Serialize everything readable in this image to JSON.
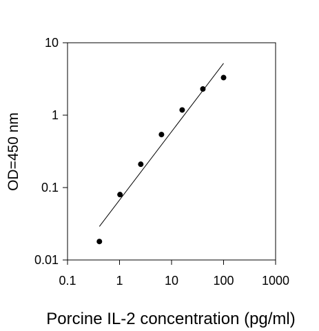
{
  "chart_data": {
    "type": "scatter",
    "title": "",
    "xlabel": "Porcine IL-2 concentration (pg/ml)",
    "ylabel": "OD=450 nm",
    "xscale": "log",
    "yscale": "log",
    "xlim": [
      0.1,
      1000
    ],
    "ylim": [
      0.01,
      10
    ],
    "xticks": [
      0.1,
      1,
      10,
      100,
      1000
    ],
    "xtick_labels": [
      "0.1",
      "1",
      "10",
      "100",
      "1000"
    ],
    "yticks": [
      0.01,
      0.1,
      1,
      10
    ],
    "ytick_labels": [
      "0.01",
      "0.1",
      "1",
      "10"
    ],
    "grid": false,
    "legend": "none",
    "series": [
      {
        "x": [
          0.41,
          1.02,
          2.56,
          6.4,
          16,
          40,
          100
        ],
        "y": [
          0.018,
          0.08,
          0.21,
          0.54,
          1.18,
          2.3,
          3.3
        ]
      }
    ],
    "fit_line": {
      "x": [
        0.41,
        100
      ],
      "y": [
        0.029,
        5.2
      ]
    },
    "colors": {
      "points": "#000000",
      "line": "#000000",
      "axes": "#000000"
    }
  }
}
